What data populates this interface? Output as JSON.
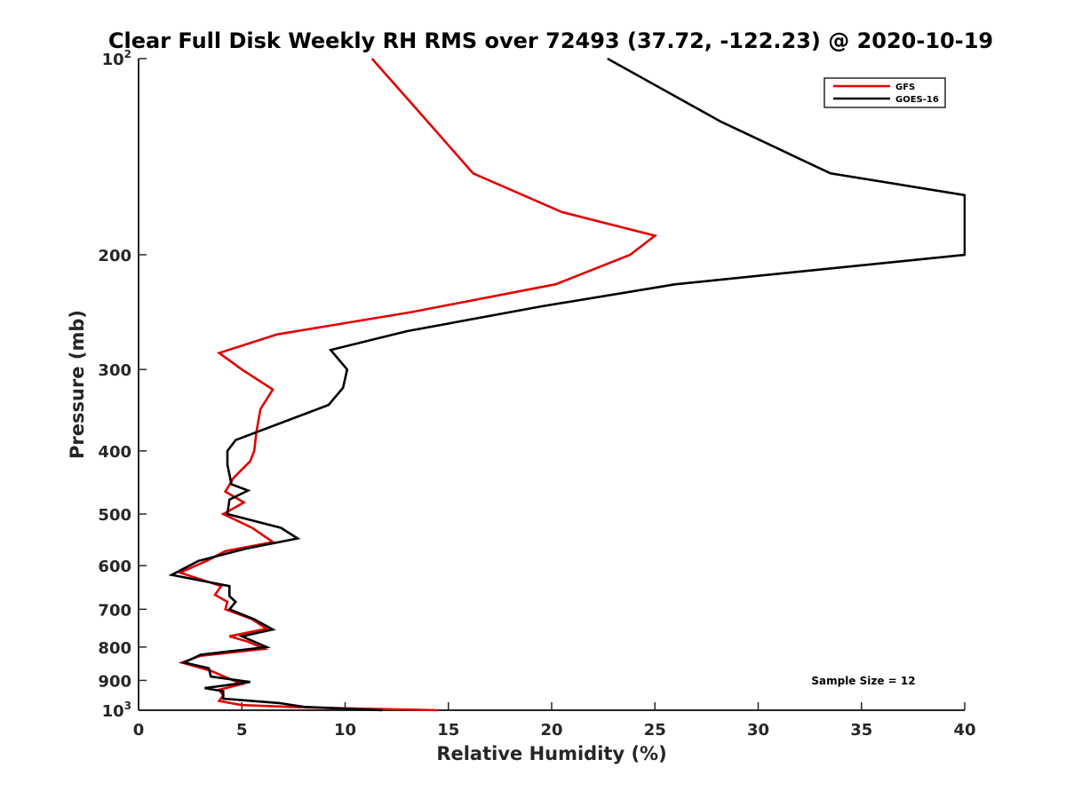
{
  "chart_data": {
    "type": "line",
    "title": "Clear Full Disk Weekly RH RMS over 72493 (37.72, -122.23) @ 2020-10-19",
    "xlabel": "Relative Humidity (%)",
    "ylabel": "Pressure (mb)",
    "xlim": [
      0,
      40
    ],
    "ylim": [
      100,
      1000
    ],
    "y_scale": "log",
    "y_reversed": true,
    "x_ticks": [
      "0",
      "5",
      "10",
      "15",
      "20",
      "25",
      "30",
      "35",
      "40"
    ],
    "y_ticks": [
      {
        "value": 100,
        "base": "10",
        "exp": "2"
      },
      {
        "value": 200,
        "label": "200"
      },
      {
        "value": 300,
        "label": "300"
      },
      {
        "value": 400,
        "label": "400"
      },
      {
        "value": 500,
        "label": "500"
      },
      {
        "value": 600,
        "label": "600"
      },
      {
        "value": 700,
        "label": "700"
      },
      {
        "value": 800,
        "label": "800"
      },
      {
        "value": 900,
        "label": "900"
      },
      {
        "value": 1000,
        "base": "10",
        "exp": "3"
      }
    ],
    "grid": false,
    "legend_position": "top-right",
    "series": [
      {
        "name": "GFS",
        "color": "#e30000",
        "points": [
          [
            11.3,
            100
          ],
          [
            14.0,
            125
          ],
          [
            16.2,
            150
          ],
          [
            20.5,
            172
          ],
          [
            25.0,
            187
          ],
          [
            23.8,
            200
          ],
          [
            20.2,
            222
          ],
          [
            13.2,
            245
          ],
          [
            6.7,
            265
          ],
          [
            3.9,
            283
          ],
          [
            5.0,
            300
          ],
          [
            6.5,
            322
          ],
          [
            5.9,
            345
          ],
          [
            5.7,
            375
          ],
          [
            5.6,
            400
          ],
          [
            5.4,
            415
          ],
          [
            4.6,
            440
          ],
          [
            4.2,
            462
          ],
          [
            5.1,
            480
          ],
          [
            4.1,
            500
          ],
          [
            5.5,
            525
          ],
          [
            6.5,
            552
          ],
          [
            4.2,
            570
          ],
          [
            3.3,
            590
          ],
          [
            2.0,
            615
          ],
          [
            4.0,
            645
          ],
          [
            3.7,
            665
          ],
          [
            4.3,
            682
          ],
          [
            4.2,
            700
          ],
          [
            5.5,
            725
          ],
          [
            6.2,
            750
          ],
          [
            4.4,
            770
          ],
          [
            5.3,
            785
          ],
          [
            6.1,
            805
          ],
          [
            3.0,
            825
          ],
          [
            2.1,
            845
          ],
          [
            3.5,
            870
          ],
          [
            4.4,
            895
          ],
          [
            5.0,
            912
          ],
          [
            3.9,
            930
          ],
          [
            4.1,
            950
          ],
          [
            3.9,
            968
          ],
          [
            5.0,
            982
          ],
          [
            8.0,
            990
          ],
          [
            14.5,
            1000
          ]
        ]
      },
      {
        "name": "GOES-16",
        "color": "#000000",
        "points": [
          [
            22.7,
            100
          ],
          [
            28.2,
            125
          ],
          [
            33.5,
            150
          ],
          [
            40.0,
            162
          ],
          [
            40.0,
            200
          ],
          [
            26.0,
            222
          ],
          [
            19.5,
            240
          ],
          [
            13.0,
            262
          ],
          [
            9.3,
            280
          ],
          [
            10.1,
            300
          ],
          [
            9.9,
            320
          ],
          [
            9.2,
            340
          ],
          [
            4.7,
            385
          ],
          [
            4.3,
            400
          ],
          [
            4.3,
            420
          ],
          [
            4.5,
            450
          ],
          [
            5.3,
            460
          ],
          [
            4.4,
            475
          ],
          [
            4.3,
            500
          ],
          [
            6.9,
            525
          ],
          [
            7.7,
            545
          ],
          [
            5.2,
            565
          ],
          [
            2.9,
            590
          ],
          [
            1.6,
            620
          ],
          [
            4.4,
            645
          ],
          [
            4.4,
            668
          ],
          [
            4.7,
            682
          ],
          [
            4.4,
            700
          ],
          [
            5.6,
            725
          ],
          [
            6.5,
            752
          ],
          [
            5.0,
            770
          ],
          [
            6.2,
            800
          ],
          [
            3.0,
            822
          ],
          [
            2.2,
            845
          ],
          [
            3.4,
            862
          ],
          [
            3.5,
            888
          ],
          [
            5.4,
            905
          ],
          [
            3.2,
            925
          ],
          [
            4.1,
            935
          ],
          [
            4.1,
            960
          ],
          [
            6.8,
            975
          ],
          [
            8.0,
            988
          ],
          [
            11.8,
            1000
          ]
        ]
      }
    ],
    "annotations": [
      {
        "text": "Sample Size = 12"
      }
    ]
  }
}
